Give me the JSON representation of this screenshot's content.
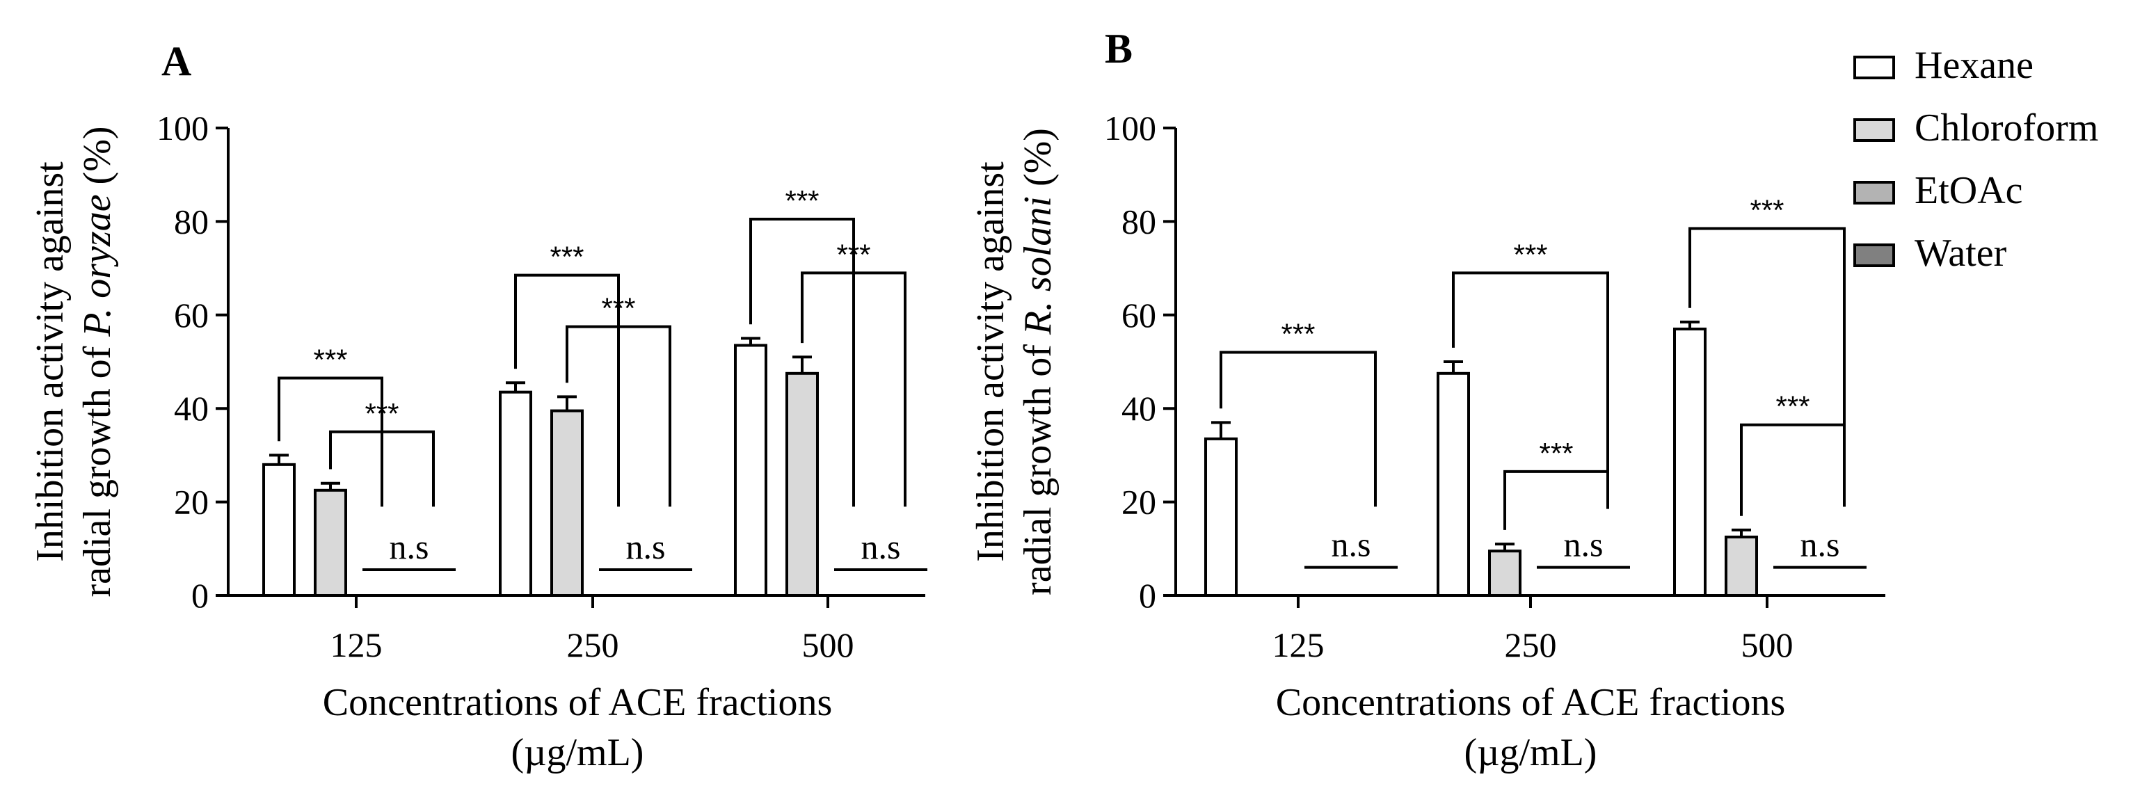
{
  "colors": {
    "Hexane": "#ffffff",
    "Chloroform": "#d9d9d9",
    "EtOAc": "#b3b3b3",
    "Water": "#808080",
    "axis": "#000000"
  },
  "legend": [
    "Hexane",
    "Chloroform",
    "EtOAc",
    "Water"
  ],
  "chart_data": [
    {
      "panel": "A",
      "type": "bar",
      "ylabel_line1": "Inhibition activity against",
      "ylabel_line2_prefix": "radial growth of ",
      "ylabel_line2_italic": "P. oryzae",
      "ylabel_line2_suffix": " (%)",
      "xlabel_line1": "Concentrations of ACE fractions",
      "xlabel_line2": "(µg/mL)",
      "ylim": [
        0,
        100
      ],
      "yticks": [
        "0",
        "20",
        "40",
        "60",
        "80",
        "100"
      ],
      "categories": [
        "125",
        "250",
        "500"
      ],
      "series": [
        {
          "name": "Hexane",
          "values": [
            28,
            43.5,
            53.5
          ],
          "errors": [
            2,
            2,
            1.5
          ]
        },
        {
          "name": "Chloroform",
          "values": [
            22.5,
            39.5,
            47.5
          ],
          "errors": [
            1.5,
            3,
            3.5
          ]
        },
        {
          "name": "EtOAc",
          "values": [
            0,
            0,
            0
          ],
          "errors": [
            0,
            0,
            0
          ]
        },
        {
          "name": "Water",
          "values": [
            0,
            0,
            0
          ],
          "errors": [
            0,
            0,
            0
          ]
        }
      ],
      "significance": [
        {
          "category": 0,
          "from": 0,
          "to": 2,
          "y": 46.5,
          "label": "***"
        },
        {
          "category": 0,
          "from": 1,
          "to": 3,
          "y": 35,
          "label": "***"
        },
        {
          "category": 1,
          "from": 0,
          "to": 2,
          "y": 68.5,
          "label": "***"
        },
        {
          "category": 1,
          "from": 1,
          "to": 3,
          "y": 57.5,
          "label": "***"
        },
        {
          "category": 2,
          "from": 0,
          "to": 2,
          "y": 80.5,
          "label": "***"
        },
        {
          "category": 2,
          "from": 1,
          "to": 3,
          "y": 69,
          "label": "***"
        }
      ],
      "ns": [
        {
          "category": 0,
          "y": 5.5,
          "label": "n.s"
        },
        {
          "category": 1,
          "y": 5.5,
          "label": "n.s"
        },
        {
          "category": 2,
          "y": 5.5,
          "label": "n.s"
        }
      ]
    },
    {
      "panel": "B",
      "type": "bar",
      "ylabel_line1": "Inhibition activity against",
      "ylabel_line2_prefix": "radial growth of ",
      "ylabel_line2_italic": "R. solani",
      "ylabel_line2_suffix": " (%)",
      "xlabel_line1": "Concentrations of ACE fractions",
      "xlabel_line2": "(µg/mL)",
      "ylim": [
        0,
        100
      ],
      "yticks": [
        "0",
        "20",
        "40",
        "60",
        "80",
        "100"
      ],
      "categories": [
        "125",
        "250",
        "500"
      ],
      "series": [
        {
          "name": "Hexane",
          "values": [
            33.5,
            47.5,
            57
          ],
          "errors": [
            3.5,
            2.5,
            1.5
          ]
        },
        {
          "name": "Chloroform",
          "values": [
            0,
            9.5,
            12.5
          ],
          "errors": [
            0,
            1.5,
            1.5
          ]
        },
        {
          "name": "EtOAc",
          "values": [
            0,
            0,
            0
          ],
          "errors": [
            0,
            0,
            0
          ]
        },
        {
          "name": "Water",
          "values": [
            0,
            0,
            0
          ],
          "errors": [
            0,
            0,
            0
          ]
        }
      ],
      "significance": [
        {
          "category": 0,
          "from": 0,
          "to": 3,
          "y": 52,
          "label": "***"
        },
        {
          "category": 1,
          "from": 0,
          "to": 3,
          "y": 69,
          "label": "***"
        },
        {
          "category": 1,
          "from": 1,
          "to": 3,
          "y": 26.5,
          "label": "***"
        },
        {
          "category": 2,
          "from": 0,
          "to": 3,
          "y": 78.5,
          "label": "***"
        },
        {
          "category": 2,
          "from": 1,
          "to": 3,
          "y": 36.5,
          "label": "***"
        }
      ],
      "ns": [
        {
          "category": 0,
          "y": 6,
          "label": "n.s"
        },
        {
          "category": 1,
          "y": 6,
          "label": "n.s"
        },
        {
          "category": 2,
          "y": 6,
          "label": "n.s"
        }
      ]
    }
  ]
}
